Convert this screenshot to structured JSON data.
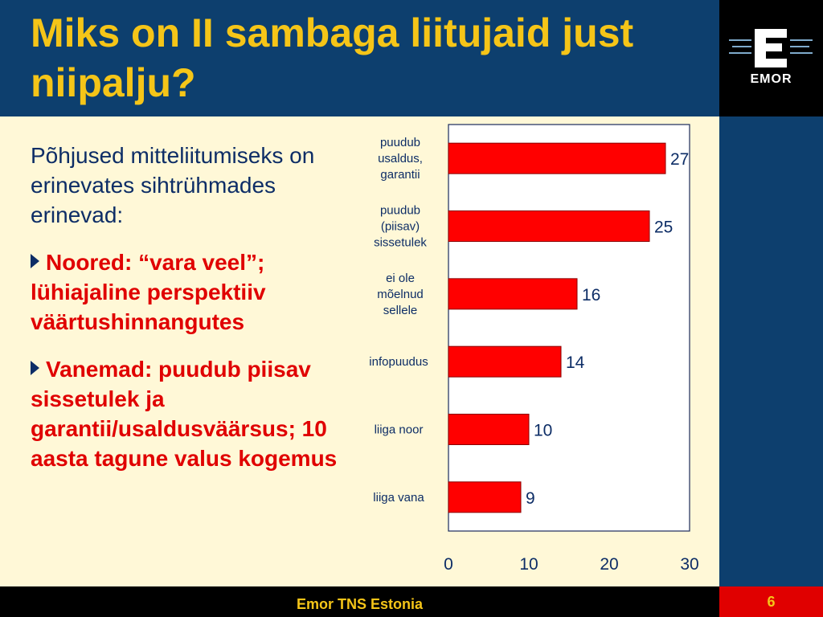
{
  "slide": {
    "title": "Miks on II sambaga liitujaid just niipalju?",
    "logo_text": "EMOR",
    "intro": "Põhjused mitteliitumiseks on erinevates sihtrühmades erinevad:",
    "bullets": [
      "Noored: “vara veel”; lühiajaline perspektiiv väärtushinnangutes",
      "Vanemad: puudub piisav sissetulek ja garantii/usaldusväärsus; 10 aasta tagune valus kogemus"
    ],
    "footer": "Emor TNS Estonia",
    "page_number": "6"
  },
  "colors": {
    "background": "#0d3f6e",
    "content_bg": "#fff8d7",
    "title": "#f5c518",
    "bar": "#ff0000",
    "bullet_text": "#e00000",
    "body_text": "#0d2d66"
  },
  "chart_data": {
    "type": "bar",
    "orientation": "horizontal",
    "categories": [
      [
        "puudub",
        "usaldus,",
        "garantii"
      ],
      [
        "puudub",
        "(piisav)",
        "sissetulek"
      ],
      [
        "ei ole",
        "mõelnud",
        "sellele"
      ],
      [
        "infopuudus"
      ],
      [
        "liiga noor"
      ],
      [
        "liiga vana"
      ]
    ],
    "values": [
      27,
      25,
      16,
      14,
      10,
      9
    ],
    "xlim": [
      0,
      30
    ],
    "xticks": [
      0,
      10,
      20,
      30
    ],
    "grid": false,
    "legend": "none"
  }
}
